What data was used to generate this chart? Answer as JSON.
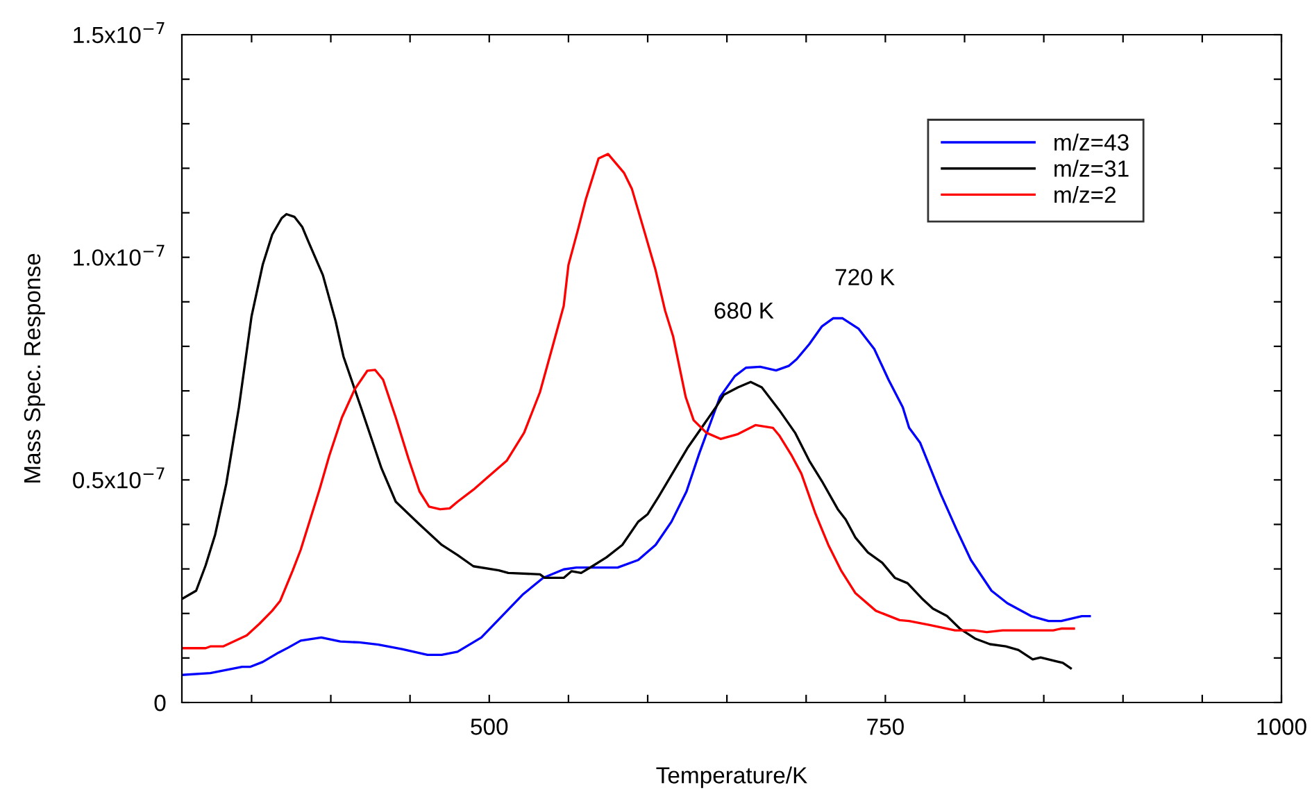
{
  "chart_data": {
    "type": "line",
    "xlabel": "Temperature/K",
    "ylabel": "Mass Spec. Response",
    "xlim": [
      306,
      1000
    ],
    "ylim": [
      0,
      1.5e-07
    ],
    "xticks": [
      {
        "value": 350,
        "label": null
      },
      {
        "value": 400,
        "label": null
      },
      {
        "value": 450,
        "label": null
      },
      500,
      {
        "value": 550,
        "label": null
      },
      {
        "value": 600,
        "label": null
      },
      {
        "value": 650,
        "label": null
      },
      {
        "value": 700,
        "label": null
      },
      750,
      {
        "value": 800,
        "label": null
      },
      {
        "value": 850,
        "label": null
      },
      {
        "value": 900,
        "label": null
      },
      {
        "value": 950,
        "label": null
      },
      1000
    ],
    "yticks": [
      {
        "value": 0,
        "label": "0"
      },
      {
        "value": 1e-08,
        "label": null
      },
      {
        "value": 2e-08,
        "label": null
      },
      {
        "value": 3e-08,
        "label": null
      },
      {
        "value": 4e-08,
        "label": null
      },
      {
        "value": 5e-08,
        "label": "0.5x10$^{−7}$"
      },
      {
        "value": 6e-08,
        "label": null
      },
      {
        "value": 7e-08,
        "label": null
      },
      {
        "value": 8e-08,
        "label": null
      },
      {
        "value": 9e-08,
        "label": null
      },
      {
        "value": 1e-07,
        "label": "1.0x10$^{−7}$"
      },
      {
        "value": 1.1e-07,
        "label": null
      },
      {
        "value": 1.2e-07,
        "label": null
      },
      {
        "value": 1.3e-07,
        "label": null
      },
      {
        "value": 1.4e-07,
        "label": null
      },
      {
        "value": 1.5e-07,
        "label": "1.5x10$^{−7}$"
      }
    ],
    "grid": false,
    "legend": "top right",
    "marker": "none",
    "line_style": "solid",
    "annotations": [
      "680 K",
      "720 K"
    ],
    "series": [
      {
        "name": "m/z=43",
        "color": "#0000ff",
        "x": [
          306.7,
          324,
          344,
          349,
          357,
          367,
          373,
          381,
          394,
          406,
          418,
          430,
          445,
          461,
          470,
          480,
          495,
          508,
          521,
          534,
          547,
          555,
          581,
          594,
          605,
          615,
          624.5,
          632.6,
          645.6,
          655,
          662,
          671,
          681,
          689,
          694,
          702,
          710,
          717,
          723,
          733,
          743,
          752,
          761,
          765,
          772,
          785,
          795,
          804,
          817,
          827,
          842,
          853,
          861,
          874,
          879
        ],
        "values": [
          6.2e-09,
          6.6e-09,
          8e-09,
          8e-09,
          9.1e-09,
          1.12e-08,
          1.23e-08,
          1.39e-08,
          1.46e-08,
          1.37e-08,
          1.35e-08,
          1.3e-08,
          1.2e-08,
          1.07e-08,
          1.07e-08,
          1.14e-08,
          1.46e-08,
          1.94e-08,
          2.42e-08,
          2.8e-08,
          2.99e-08,
          3.03e-08,
          3.03e-08,
          3.2e-08,
          3.54e-08,
          4.06e-08,
          4.74e-08,
          5.6e-08,
          6.86e-08,
          7.33e-08,
          7.52e-08,
          7.54e-08,
          7.46e-08,
          7.56e-08,
          7.71e-08,
          8.05e-08,
          8.45e-08,
          8.63e-08,
          8.63e-08,
          8.4e-08,
          7.94e-08,
          7.25e-08,
          6.63e-08,
          6.17e-08,
          5.83e-08,
          4.68e-08,
          3.88e-08,
          3.2e-08,
          2.51e-08,
          2.23e-08,
          1.94e-08,
          1.83e-08,
          1.83e-08,
          1.94e-08,
          1.94e-08
        ]
      },
      {
        "name": "m/z=31",
        "color": "#000000",
        "x": [
          306.7,
          315,
          321,
          327,
          334,
          342,
          350,
          357,
          363,
          369,
          372,
          377,
          382,
          386,
          395,
          403,
          408,
          419,
          432,
          441,
          456,
          470,
          480,
          490,
          506,
          512,
          532,
          535,
          547,
          552,
          558,
          565,
          574,
          584,
          594,
          600,
          607,
          625,
          643,
          648,
          657,
          665,
          672,
          683,
          693,
          702,
          710,
          720,
          725,
          731,
          739,
          748,
          756,
          764,
          773,
          780,
          789,
          797,
          807,
          816,
          826,
          834,
          843,
          848,
          862,
          867
        ],
        "values": [
          2.34e-08,
          2.51e-08,
          3.08e-08,
          3.77e-08,
          4.91e-08,
          6.63e-08,
          8.68e-08,
          9.83e-08,
          1.051e-07,
          1.088e-07,
          1.097e-07,
          1.091e-07,
          1.068e-07,
          1.034e-07,
          9.6e-08,
          8.57e-08,
          7.77e-08,
          6.63e-08,
          5.26e-08,
          4.51e-08,
          4e-08,
          3.54e-08,
          3.31e-08,
          3.06e-08,
          2.97e-08,
          2.91e-08,
          2.88e-08,
          2.8e-08,
          2.8e-08,
          2.95e-08,
          2.91e-08,
          3.06e-08,
          3.26e-08,
          3.54e-08,
          4.06e-08,
          4.23e-08,
          4.63e-08,
          5.71e-08,
          6.63e-08,
          6.91e-08,
          7.08e-08,
          7.2e-08,
          7.08e-08,
          6.57e-08,
          6.06e-08,
          5.43e-08,
          4.97e-08,
          4.34e-08,
          4.11e-08,
          3.71e-08,
          3.37e-08,
          3.14e-08,
          2.8e-08,
          2.68e-08,
          2.34e-08,
          2.11e-08,
          1.94e-08,
          1.66e-08,
          1.43e-08,
          1.31e-08,
          1.26e-08,
          1.18e-08,
          9.7e-09,
          1.01e-08,
          8.9e-09,
          7.7e-09
        ]
      },
      {
        "name": "m/z=2",
        "color": "#ff0000",
        "x": [
          306.7,
          321,
          324,
          332,
          340,
          347,
          355,
          363,
          368,
          376,
          381,
          386,
          393,
          399,
          407,
          415,
          423,
          428,
          433,
          441,
          449,
          456,
          462,
          469,
          475,
          480,
          490,
          498,
          511,
          522,
          532,
          540,
          547,
          550,
          556,
          561,
          569,
          575,
          585,
          590,
          598,
          605,
          611,
          616,
          624,
          629,
          637,
          646,
          657,
          668,
          679,
          683,
          691,
          697,
          706,
          714,
          722,
          731,
          744,
          759,
          765,
          778,
          794,
          806,
          814,
          824,
          856,
          861,
          869
        ],
        "values": [
          1.22e-08,
          1.22e-08,
          1.26e-08,
          1.26e-08,
          1.39e-08,
          1.51e-08,
          1.77e-08,
          2.06e-08,
          2.28e-08,
          2.97e-08,
          3.43e-08,
          4e-08,
          4.8e-08,
          5.54e-08,
          6.4e-08,
          7.03e-08,
          7.45e-08,
          7.47e-08,
          7.25e-08,
          6.4e-08,
          5.48e-08,
          4.74e-08,
          4.4e-08,
          4.34e-08,
          4.36e-08,
          4.51e-08,
          4.78e-08,
          5.03e-08,
          5.43e-08,
          6.06e-08,
          6.97e-08,
          8e-08,
          8.91e-08,
          9.83e-08,
          1.062e-07,
          1.131e-07,
          1.222e-07,
          1.232e-07,
          1.19e-07,
          1.154e-07,
          1.057e-07,
          9.71e-08,
          8.8e-08,
          8.23e-08,
          6.86e-08,
          6.34e-08,
          6.06e-08,
          5.92e-08,
          6.03e-08,
          6.23e-08,
          6.17e-08,
          6e-08,
          5.54e-08,
          5.14e-08,
          4.23e-08,
          3.54e-08,
          2.97e-08,
          2.46e-08,
          2.06e-08,
          1.85e-08,
          1.83e-08,
          1.74e-08,
          1.62e-08,
          1.62e-08,
          1.58e-08,
          1.62e-08,
          1.62e-08,
          1.66e-08,
          1.66e-08
        ]
      }
    ]
  }
}
